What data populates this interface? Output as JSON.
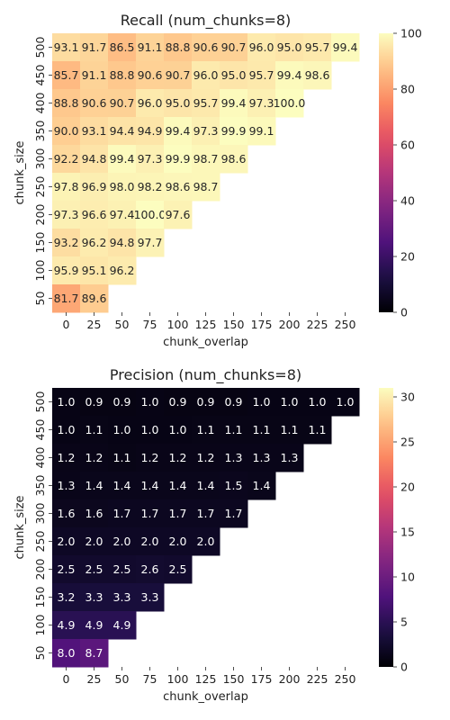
{
  "chart_data": [
    {
      "type": "heatmap",
      "title": "Recall (num_chunks=8)",
      "xlabel": "chunk_overlap",
      "ylabel": "chunk_size",
      "x": [
        "0",
        "25",
        "50",
        "75",
        "100",
        "125",
        "150",
        "175",
        "200",
        "225",
        "250"
      ],
      "y": [
        "500",
        "450",
        "400",
        "350",
        "300",
        "250",
        "200",
        "150",
        "100",
        "50"
      ],
      "values": [
        [
          93.1,
          91.7,
          86.5,
          91.1,
          88.8,
          90.6,
          90.7,
          96.0,
          95.0,
          95.7,
          99.4
        ],
        [
          85.7,
          91.1,
          88.8,
          90.6,
          90.7,
          96.0,
          95.0,
          95.7,
          99.4,
          98.6,
          null
        ],
        [
          88.8,
          90.6,
          90.7,
          96.0,
          95.0,
          95.7,
          99.4,
          97.3,
          100.0,
          null,
          null
        ],
        [
          90.0,
          93.1,
          94.4,
          94.9,
          99.4,
          97.3,
          99.9,
          99.1,
          null,
          null,
          null
        ],
        [
          92.2,
          94.8,
          99.4,
          97.3,
          99.9,
          98.7,
          98.6,
          null,
          null,
          null,
          null
        ],
        [
          97.8,
          96.9,
          98.0,
          98.2,
          98.6,
          98.7,
          null,
          null,
          null,
          null,
          null
        ],
        [
          97.3,
          96.6,
          97.4,
          100.0,
          97.6,
          null,
          null,
          null,
          null,
          null,
          null
        ],
        [
          93.2,
          96.2,
          94.8,
          97.7,
          null,
          null,
          null,
          null,
          null,
          null,
          null
        ],
        [
          95.9,
          95.1,
          96.2,
          null,
          null,
          null,
          null,
          null,
          null,
          null,
          null
        ],
        [
          81.7,
          89.6,
          null,
          null,
          null,
          null,
          null,
          null,
          null,
          null,
          null
        ]
      ],
      "colormap": "magma",
      "vmin": 0,
      "vmax": 100,
      "colorbar_ticks": [
        0,
        20,
        40,
        60,
        80,
        100
      ]
    },
    {
      "type": "heatmap",
      "title": "Precision (num_chunks=8)",
      "xlabel": "chunk_overlap",
      "ylabel": "chunk_size",
      "x": [
        "0",
        "25",
        "50",
        "75",
        "100",
        "125",
        "150",
        "175",
        "200",
        "225",
        "250"
      ],
      "y": [
        "500",
        "450",
        "400",
        "350",
        "300",
        "250",
        "200",
        "150",
        "100",
        "50"
      ],
      "values": [
        [
          1.0,
          0.9,
          0.9,
          1.0,
          0.9,
          0.9,
          0.9,
          1.0,
          1.0,
          1.0,
          1.0
        ],
        [
          1.0,
          1.1,
          1.0,
          1.0,
          1.0,
          1.1,
          1.1,
          1.1,
          1.1,
          1.1,
          null
        ],
        [
          1.2,
          1.2,
          1.1,
          1.2,
          1.2,
          1.2,
          1.3,
          1.3,
          1.3,
          null,
          null
        ],
        [
          1.3,
          1.4,
          1.4,
          1.4,
          1.4,
          1.4,
          1.5,
          1.4,
          null,
          null,
          null
        ],
        [
          1.6,
          1.6,
          1.7,
          1.7,
          1.7,
          1.7,
          1.7,
          null,
          null,
          null,
          null
        ],
        [
          2.0,
          2.0,
          2.0,
          2.0,
          2.0,
          2.0,
          null,
          null,
          null,
          null,
          null
        ],
        [
          2.5,
          2.5,
          2.5,
          2.6,
          2.5,
          null,
          null,
          null,
          null,
          null,
          null
        ],
        [
          3.2,
          3.3,
          3.3,
          3.3,
          null,
          null,
          null,
          null,
          null,
          null,
          null
        ],
        [
          4.9,
          4.9,
          4.9,
          null,
          null,
          null,
          null,
          null,
          null,
          null,
          null
        ],
        [
          8.0,
          8.7,
          null,
          null,
          null,
          null,
          null,
          null,
          null,
          null,
          null
        ]
      ],
      "colormap": "magma",
      "vmin": 0,
      "vmax": 31,
      "colorbar_ticks": [
        0,
        5,
        10,
        15,
        20,
        25,
        30
      ]
    }
  ]
}
